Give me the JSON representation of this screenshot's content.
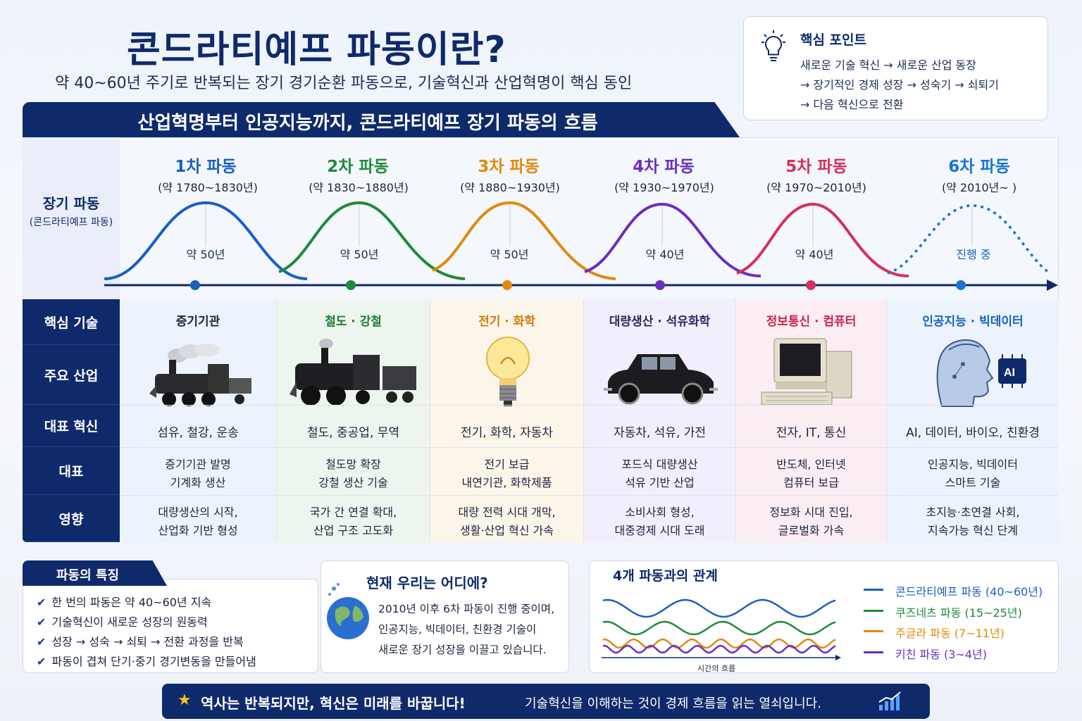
{
  "header": {
    "title": "콘드라티예프 파동이란?",
    "subtitle": "약 40~60년 주기로 반복되는 장기 경기순환 파동으로, 기술혁신과 산업혁명이 핵심 동인"
  },
  "key_points": {
    "title": "핵심 포인트",
    "lines": [
      "새로운 기술 혁신 → 새로운 산업 동장",
      "→ 장기적인 경제 성장 → 성숙기 → 쇠퇴기",
      "→ 다음 혁신으로 전환"
    ]
  },
  "banner": "산업혁명부터 인공지능까지, 콘드라티예프 장기 파동의 흐름",
  "wave_label": {
    "main": "장기 파동",
    "sub": "(콘드라티예프 파동)"
  },
  "row_labels": [
    "핵심 기술",
    "주요 산업",
    "대표 혁신",
    "대표",
    "영향"
  ],
  "waves": [
    {
      "title": "1차 파동",
      "period": "(약 1780~1830년)",
      "duration": "약 50년",
      "color": "#1a5fc4",
      "tech": "증기기관",
      "icon": "steam-locomotive-icon",
      "industry": "섬유, 철강, 운송",
      "rep1": "증기기관 발명",
      "rep2": "기계화 생산",
      "eff1": "대량생산의 시작,",
      "eff2": "산업화 기반 형성"
    },
    {
      "title": "2차 파동",
      "period": "(약 1830~1880년)",
      "duration": "약 50년",
      "color": "#1f8a3a",
      "tech": "철도 · 강철",
      "icon": "train-icon",
      "industry": "철도, 중공업, 무역",
      "rep1": "철도망 확장",
      "rep2": "강철 생산 기술",
      "eff1": "국가 간 연결 확대,",
      "eff2": "산업 구조 고도화"
    },
    {
      "title": "3차 파동",
      "period": "(약 1880~1930년)",
      "duration": "약 50년",
      "color": "#e08a0c",
      "tech": "전기 · 화학",
      "icon": "light-bulb-icon",
      "industry": "전기, 화학, 자동차",
      "rep1": "전기 보급",
      "rep2": "내연기관, 화학제품",
      "eff1": "대량 전력 시대 개막,",
      "eff2": "생활·산업 혁신 가속"
    },
    {
      "title": "4차 파동",
      "period": "(약 1930~1970년)",
      "duration": "약 40년",
      "color": "#6a2fc0",
      "tech": "대량생산 · 석유화학",
      "icon": "car-icon",
      "industry": "자동차, 석유, 가전",
      "rep1": "포드식 대량생산",
      "rep2": "석유 기반 산업",
      "eff1": "소비사회 형성,",
      "eff2": "대중경제 시대 도래"
    },
    {
      "title": "5차 파동",
      "period": "(약 1970~2010년)",
      "duration": "약 40년",
      "color": "#d6305c",
      "tech": "정보통신 · 컴퓨터",
      "icon": "computer-icon",
      "industry": "전자, IT, 통신",
      "rep1": "반도체, 인터넷",
      "rep2": "컴퓨터 보급",
      "eff1": "정보화 시대 진입,",
      "eff2": "글로벌화 가속"
    },
    {
      "title": "6차 파동",
      "period": "(약 2010년~ )",
      "duration": "진행 중",
      "color": "#1a74d2",
      "tech": "인공지능 · 빅데이터",
      "icon": "ai-head-icon",
      "industry": "AI, 데이터, 바이오, 친환경",
      "rep1": "인공지능, 빅데이터",
      "rep2": "스마트 기술",
      "eff1": "초지능·초연결 사회,",
      "eff2": "지속가능 혁신 단계"
    }
  ],
  "features": {
    "title": "파동의 특징",
    "items": [
      "한 번의 파동은 약 40~60년 지속",
      "기술혁신이 새로운 성장의 원동력",
      "성장 → 성숙 → 쇠퇴 → 전환 과정을 반복",
      "파동이 겹쳐 단기·중기 경기변동을 만들어냄"
    ]
  },
  "now": {
    "title": "현재 우리는 어디에?",
    "lines": [
      "2010년 이후 6차 파동이 진행 중이며,",
      "인공지능, 빅데이터, 친환경 기술이",
      "새로운 장기 성장을 이끌고 있습니다."
    ]
  },
  "relation": {
    "title": "4개 파동과의 관계",
    "axis_label": "시간의 흐름",
    "legend": [
      {
        "name": "콘드라티예프 파동 (40~60년)",
        "color": "#1a5fc4"
      },
      {
        "name": "쿠즈네츠 파동 (15~25년)",
        "color": "#1f8a3a"
      },
      {
        "name": "주글라 파동 (7~11년)",
        "color": "#e08a0c"
      },
      {
        "name": "키친 파동 (3~4년)",
        "color": "#6a2fc0"
      }
    ]
  },
  "footer": {
    "main": "역사는 반복되지만, 혁신은 미래를 바꿉니다!",
    "sub": "기술혁신을 이해하는 것이 경제 흐름을 읽는 열쇠입니다."
  }
}
